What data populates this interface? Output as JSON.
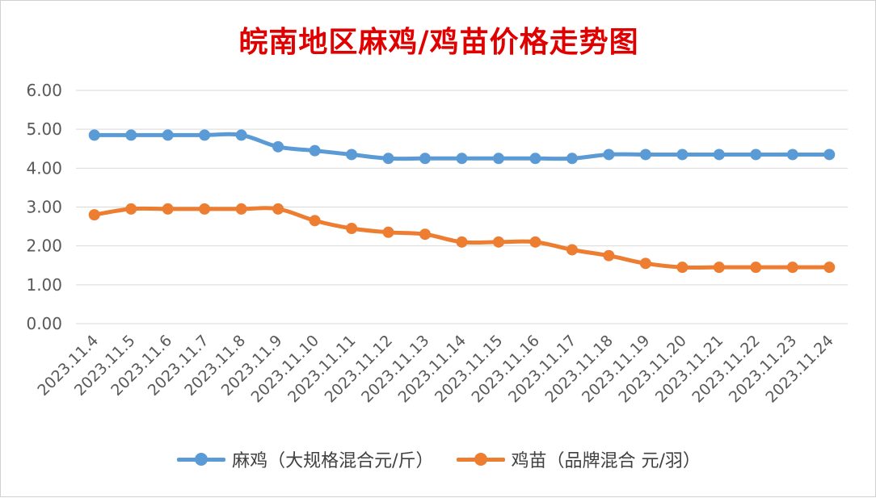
{
  "chart_data": {
    "type": "line",
    "title": "皖南地区麻鸡/鸡苗价格走势图",
    "categories": [
      "2023.11.4",
      "2023.11.5",
      "2023.11.6",
      "2023.11.7",
      "2023.11.8",
      "2023.11.9",
      "2023.11.10",
      "2023.11.11",
      "2023.11.12",
      "2023.11.13",
      "2023.11.14",
      "2023.11.15",
      "2023.11.16",
      "2023.11.17",
      "2023.11.18",
      "2023.11.19",
      "2023.11.20",
      "2023.11.21",
      "2023.11.22",
      "2023.11.23",
      "2023.11.24"
    ],
    "yticks": [
      "0.00",
      "1.00",
      "2.00",
      "3.00",
      "4.00",
      "5.00",
      "6.00"
    ],
    "ylim": [
      0,
      6
    ],
    "grid": true,
    "legend_position": "bottom",
    "series": [
      {
        "name": "麻鸡（大规格混合元/斤）",
        "color": "#5b9bd5",
        "values": [
          4.85,
          4.85,
          4.85,
          4.85,
          4.85,
          4.55,
          4.45,
          4.35,
          4.25,
          4.25,
          4.25,
          4.25,
          4.25,
          4.25,
          4.35,
          4.35,
          4.35,
          4.35,
          4.35,
          4.35,
          4.35
        ]
      },
      {
        "name": "鸡苗（品牌混合 元/羽）",
        "color": "#ed7d31",
        "values": [
          2.8,
          2.95,
          2.95,
          2.95,
          2.95,
          2.95,
          2.65,
          2.45,
          2.35,
          2.3,
          2.1,
          2.1,
          2.1,
          1.9,
          1.75,
          1.55,
          1.45,
          1.45,
          1.45,
          1.45,
          1.45
        ]
      }
    ]
  }
}
